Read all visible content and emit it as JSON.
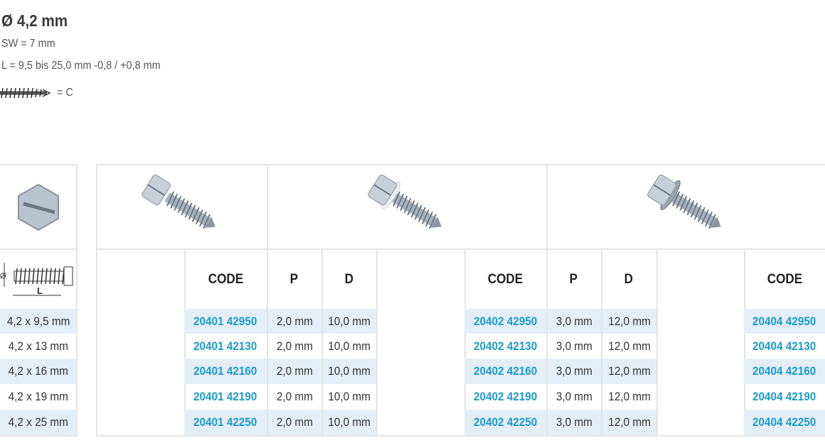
{
  "spec": {
    "title": "Ø 4,2 mm",
    "sw": "SW = 7 mm",
    "length": "L = 9,5 bis 25,0 mm -0,8 / +0,8 mm",
    "thread_type": "= C",
    "thread_icon": "thread-icon"
  },
  "colors": {
    "code": "#1e9bcc",
    "row_highlight": "#e4eef7",
    "border": "#e4e4e4"
  },
  "left_table": {
    "head_icon": "hex-head-icon",
    "dimension_icon": "screw-dimension-drawing-icon",
    "sizes": [
      "4,2 x 9,5 mm",
      "4,2 x 13 mm",
      "4,2 x 16 mm",
      "4,2 x 19 mm",
      "4,2 x 25 mm"
    ]
  },
  "groups": [
    {
      "image": "hex-head-screw-icon",
      "headers": [
        "CODE",
        "P",
        "D"
      ],
      "codes": [
        "20401 42950",
        "20401 42130",
        "20401 42160",
        "20401 42190",
        "20401 42250"
      ],
      "p": [
        "2,0 mm",
        "2,0 mm",
        "2,0 mm",
        "2,0 mm",
        "2,0 mm"
      ],
      "d": [
        "10,0 mm",
        "10,0 mm",
        "10,0 mm",
        "10,0 mm",
        "10,0 mm"
      ]
    },
    {
      "image": "hex-head-screw-with-plastic-washer-icon",
      "headers": [
        "CODE",
        "P",
        "D"
      ],
      "codes": [
        "20402 42950",
        "20402 42130",
        "20402 42160",
        "20402 42190",
        "20402 42250"
      ],
      "p": [
        "3,0 mm",
        "3,0 mm",
        "3,0 mm",
        "3,0 mm",
        "3,0 mm"
      ],
      "d": [
        "12,0 mm",
        "12,0 mm",
        "12,0 mm",
        "12,0 mm",
        "12,0 mm"
      ]
    },
    {
      "image": "hex-head-screw-with-metal-washer-icon",
      "headers": [
        "CODE"
      ],
      "codes": [
        "20404 42950",
        "20404 42130",
        "20404 42160",
        "20404 42190",
        "20404 42250"
      ]
    }
  ]
}
